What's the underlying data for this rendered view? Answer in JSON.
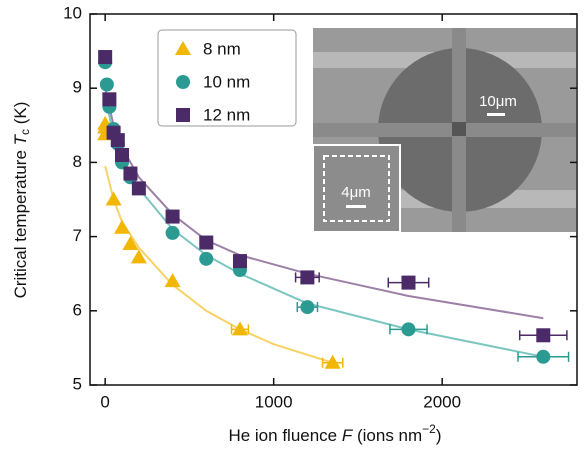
{
  "chart_data": {
    "type": "scatter",
    "xlabel": [
      "He ion fluence ",
      "F",
      " (ions nm",
      "−2",
      ")"
    ],
    "ylabel": [
      "Critical temperature ",
      "T",
      "c",
      " (K)"
    ],
    "xlim": [
      -90,
      2800
    ],
    "ylim": [
      5,
      10
    ],
    "xticks": [
      0,
      1000,
      2000
    ],
    "yticks": [
      5,
      6,
      7,
      8,
      9,
      10
    ],
    "legend": "upper left",
    "inset_labels": [
      "10μm",
      "4μm"
    ],
    "series": [
      {
        "name": "8 nm",
        "color": "#f2b705",
        "marker": "triangle",
        "x": [
          0,
          0,
          0,
          50,
          100,
          150,
          200,
          400,
          800,
          1350
        ],
        "values": [
          8.38,
          8.47,
          8.52,
          7.5,
          7.12,
          6.9,
          6.72,
          6.4,
          5.75,
          5.3
        ],
        "xerr": [
          null,
          null,
          null,
          null,
          null,
          null,
          null,
          null,
          50,
          60
        ]
      },
      {
        "name": "10 nm",
        "color": "#2a9a92",
        "marker": "circle",
        "x": [
          0,
          10,
          25,
          50,
          75,
          100,
          150,
          400,
          600,
          800,
          1200,
          1800,
          2600
        ],
        "values": [
          9.35,
          9.05,
          8.75,
          8.45,
          8.25,
          8.0,
          7.8,
          7.05,
          6.7,
          6.55,
          6.05,
          5.75,
          5.38
        ],
        "xerr": [
          null,
          null,
          null,
          null,
          null,
          null,
          null,
          null,
          null,
          null,
          60,
          110,
          150
        ]
      },
      {
        "name": "12 nm",
        "color": "#4b2a68",
        "marker": "square",
        "x": [
          0,
          25,
          50,
          75,
          100,
          150,
          200,
          400,
          600,
          800,
          1200,
          1800,
          2600
        ],
        "values": [
          9.42,
          8.85,
          8.4,
          8.3,
          8.1,
          7.85,
          7.65,
          7.27,
          6.92,
          6.67,
          6.45,
          6.38,
          5.67
        ],
        "xerr": [
          null,
          null,
          null,
          null,
          null,
          null,
          null,
          null,
          null,
          null,
          70,
          120,
          140
        ]
      }
    ],
    "fits": [
      {
        "color": "#f7d266",
        "x": [
          0,
          50,
          100,
          200,
          400,
          600,
          800,
          1000,
          1350
        ],
        "values": [
          7.95,
          7.5,
          7.2,
          6.85,
          6.35,
          6.0,
          5.75,
          5.55,
          5.3
        ]
      },
      {
        "color": "#7cc6c0",
        "x": [
          0,
          50,
          100,
          200,
          400,
          600,
          800,
          1200,
          1800,
          2600
        ],
        "values": [
          8.9,
          8.35,
          8.05,
          7.65,
          7.1,
          6.75,
          6.5,
          6.1,
          5.75,
          5.38
        ]
      },
      {
        "color": "#9c80a8",
        "x": [
          0,
          50,
          100,
          200,
          400,
          600,
          800,
          1200,
          1800,
          2600
        ],
        "values": [
          9.0,
          8.5,
          8.2,
          7.8,
          7.3,
          6.95,
          6.75,
          6.5,
          6.2,
          5.9
        ]
      }
    ]
  }
}
